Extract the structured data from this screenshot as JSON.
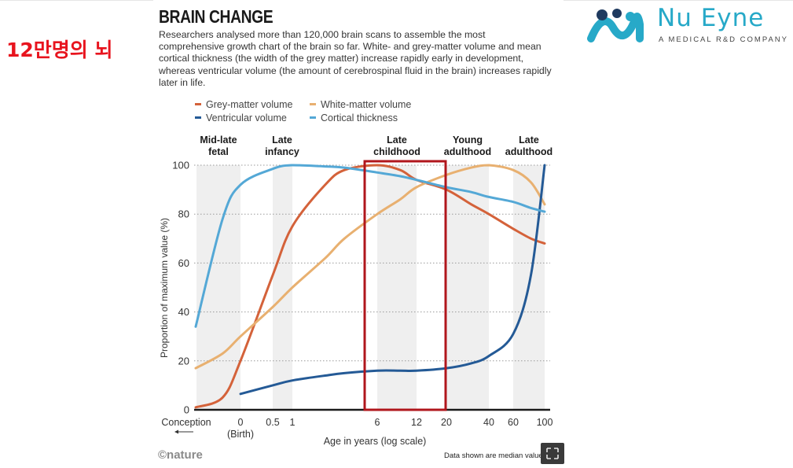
{
  "overlay": {
    "korean_caption": "12만명의 뇌"
  },
  "logo": {
    "name": "Nu Eyne",
    "tagline": "A MEDICAL R&D COMPANY",
    "color": "#27a9c8",
    "dark_color": "#1f3a5f"
  },
  "header": {
    "title": "BRAIN CHANGE",
    "description": "Researchers analysed more than 120,000 brain scans to assemble the most comprehensive growth chart of the brain so far. White- and grey-matter volume and mean cortical thickness (the width of the grey matter) increase rapidly early in development, whereas ventricular volume (the amount of cerebrospinal fluid in the brain) increases rapidly later in life."
  },
  "footer": {
    "credit": "©nature",
    "note": "Data shown are median values."
  },
  "highlight": {
    "color": "#b0161c",
    "from_x": "6",
    "to_x": "20"
  },
  "chart_data": {
    "type": "line",
    "xlabel": "Age in years (log scale)",
    "ylabel": "Proportion of maximum value (%)",
    "ylim": [
      0,
      100
    ],
    "yticks": [
      "0",
      "20",
      "40",
      "60",
      "80",
      "100"
    ],
    "xticks": [
      "0",
      "0.5",
      "1",
      "6",
      "12",
      "20",
      "40",
      "60",
      "100"
    ],
    "xticks_sub": [
      "(Birth)"
    ],
    "conception_label": "Conception",
    "grid": "horizontal dotted",
    "stages": [
      "Mid-late fetal",
      "Late infancy",
      "Late childhood",
      "Young adulthood",
      "Late adulthood"
    ],
    "legend_position": "top",
    "x": [
      "Conception",
      "-0.4",
      "0",
      "0.5",
      "1",
      "2",
      "3",
      "6",
      "9",
      "12",
      "20",
      "30",
      "40",
      "60",
      "80",
      "100"
    ],
    "series": [
      {
        "name": "Grey-matter volume",
        "color": "#d4623a",
        "values": [
          1,
          5,
          20,
          55,
          75,
          92,
          98,
          100,
          98,
          94,
          90,
          84,
          80,
          74,
          70,
          68
        ]
      },
      {
        "name": "White-matter volume",
        "color": "#e8b070",
        "values": [
          17,
          23,
          30,
          42,
          50,
          62,
          70,
          80,
          86,
          91,
          96,
          99,
          100,
          98,
          93,
          84
        ]
      },
      {
        "name": "Ventricular volume",
        "color": "#245a96",
        "values": [
          null,
          null,
          6.5,
          10,
          12,
          14,
          15,
          16,
          16,
          16,
          17,
          19,
          22,
          31,
          55,
          100
        ]
      },
      {
        "name": "Cortical thickness",
        "color": "#54a8d6",
        "values": [
          34,
          78,
          92,
          98.5,
          100,
          99.5,
          99,
          97,
          95.5,
          94,
          91,
          89,
          87,
          85,
          82.5,
          81
        ]
      }
    ]
  }
}
